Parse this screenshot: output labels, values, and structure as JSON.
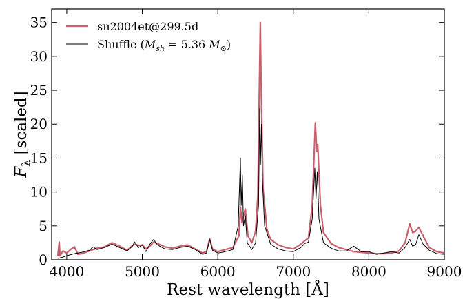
{
  "chart_data": {
    "type": "line",
    "title": "",
    "xlabel": "Rest wavelength [Å]",
    "ylabel_main": "F",
    "ylabel_sub": "λ",
    "ylabel_rest": " [scaled]",
    "xlim": [
      3800,
      9000
    ],
    "ylim": [
      0,
      37
    ],
    "grid": false,
    "legend_position": "top-left",
    "x_ticks": [
      4000,
      5000,
      6000,
      7000,
      8000,
      9000
    ],
    "x_tick_labels": [
      "4000",
      "5000",
      "6000",
      "7000",
      "8000",
      "9000"
    ],
    "y_ticks": [
      0,
      5,
      10,
      15,
      20,
      25,
      30,
      35
    ],
    "y_tick_labels": [
      "0",
      "5",
      "10",
      "15",
      "20",
      "25",
      "30",
      "35"
    ],
    "series": [
      {
        "name": "sn2004et@299.5d",
        "color": "#c8606e",
        "width": 2.2,
        "points": [
          [
            3880,
            0.5
          ],
          [
            3900,
            2.6
          ],
          [
            3910,
            0.6
          ],
          [
            3950,
            1.3
          ],
          [
            4000,
            1.0
          ],
          [
            4050,
            1.5
          ],
          [
            4100,
            1.9
          ],
          [
            4150,
            0.8
          ],
          [
            4200,
            0.9
          ],
          [
            4300,
            1.3
          ],
          [
            4400,
            1.7
          ],
          [
            4500,
            1.9
          ],
          [
            4600,
            2.5
          ],
          [
            4700,
            2.0
          ],
          [
            4800,
            1.4
          ],
          [
            4860,
            2.0
          ],
          [
            4900,
            2.3
          ],
          [
            4950,
            2.1
          ],
          [
            5000,
            2.2
          ],
          [
            5050,
            1.6
          ],
          [
            5100,
            2.0
          ],
          [
            5150,
            2.6
          ],
          [
            5200,
            2.4
          ],
          [
            5300,
            1.9
          ],
          [
            5400,
            1.7
          ],
          [
            5500,
            2.0
          ],
          [
            5600,
            2.2
          ],
          [
            5700,
            1.6
          ],
          [
            5800,
            1.0
          ],
          [
            5850,
            1.2
          ],
          [
            5893,
            3.1
          ],
          [
            5930,
            1.6
          ],
          [
            6000,
            1.2
          ],
          [
            6100,
            1.5
          ],
          [
            6200,
            1.8
          ],
          [
            6280,
            3.5
          ],
          [
            6300,
            7.8
          ],
          [
            6320,
            5.5
          ],
          [
            6364,
            7.5
          ],
          [
            6400,
            3.5
          ],
          [
            6450,
            2.5
          ],
          [
            6500,
            4.2
          ],
          [
            6530,
            9.5
          ],
          [
            6550,
            25.0
          ],
          [
            6563,
            35.0
          ],
          [
            6575,
            25.0
          ],
          [
            6600,
            10.5
          ],
          [
            6650,
            4.5
          ],
          [
            6700,
            3.0
          ],
          [
            6800,
            2.2
          ],
          [
            6900,
            1.8
          ],
          [
            7000,
            1.6
          ],
          [
            7100,
            2.3
          ],
          [
            7150,
            2.8
          ],
          [
            7200,
            3.2
          ],
          [
            7250,
            8.0
          ],
          [
            7291,
            20.2
          ],
          [
            7310,
            16.0
          ],
          [
            7323,
            17.0
          ],
          [
            7360,
            8.0
          ],
          [
            7400,
            4.0
          ],
          [
            7500,
            2.4
          ],
          [
            7600,
            1.8
          ],
          [
            7700,
            1.5
          ],
          [
            7800,
            1.2
          ],
          [
            7900,
            1.1
          ],
          [
            8000,
            1.0
          ],
          [
            8100,
            0.9
          ],
          [
            8200,
            0.9
          ],
          [
            8300,
            1.0
          ],
          [
            8400,
            1.3
          ],
          [
            8480,
            2.5
          ],
          [
            8542,
            5.3
          ],
          [
            8580,
            4.0
          ],
          [
            8620,
            4.2
          ],
          [
            8662,
            4.8
          ],
          [
            8720,
            3.5
          ],
          [
            8800,
            1.8
          ],
          [
            8900,
            1.2
          ],
          [
            9000,
            1.0
          ]
        ]
      },
      {
        "name": "Shuffle (M_sh = 5.36 M_⊙)",
        "color": "#000000",
        "width": 1.0,
        "points": [
          [
            3880,
            0.2
          ],
          [
            3950,
            0.4
          ],
          [
            4000,
            0.6
          ],
          [
            4100,
            0.9
          ],
          [
            4200,
            1.1
          ],
          [
            4300,
            1.4
          ],
          [
            4350,
            1.9
          ],
          [
            4400,
            1.5
          ],
          [
            4500,
            1.8
          ],
          [
            4600,
            2.3
          ],
          [
            4700,
            1.8
          ],
          [
            4800,
            1.3
          ],
          [
            4860,
            1.9
          ],
          [
            4900,
            2.6
          ],
          [
            4950,
            1.8
          ],
          [
            5000,
            2.2
          ],
          [
            5050,
            1.2
          ],
          [
            5100,
            2.3
          ],
          [
            5150,
            3.0
          ],
          [
            5200,
            2.2
          ],
          [
            5300,
            1.6
          ],
          [
            5400,
            1.5
          ],
          [
            5500,
            1.8
          ],
          [
            5600,
            2.0
          ],
          [
            5700,
            1.5
          ],
          [
            5800,
            0.8
          ],
          [
            5850,
            1.0
          ],
          [
            5893,
            3.0
          ],
          [
            5930,
            1.4
          ],
          [
            6000,
            1.0
          ],
          [
            6100,
            1.2
          ],
          [
            6200,
            1.5
          ],
          [
            6270,
            5.0
          ],
          [
            6300,
            15.0
          ],
          [
            6310,
            8.0
          ],
          [
            6325,
            12.5
          ],
          [
            6340,
            5.0
          ],
          [
            6364,
            6.5
          ],
          [
            6390,
            2.5
          ],
          [
            6450,
            1.5
          ],
          [
            6500,
            2.5
          ],
          [
            6540,
            8.0
          ],
          [
            6555,
            22.3
          ],
          [
            6565,
            14.0
          ],
          [
            6578,
            20.0
          ],
          [
            6590,
            12.0
          ],
          [
            6620,
            5.0
          ],
          [
            6700,
            2.3
          ],
          [
            6800,
            1.6
          ],
          [
            6900,
            1.3
          ],
          [
            7000,
            1.2
          ],
          [
            7100,
            1.8
          ],
          [
            7150,
            2.4
          ],
          [
            7200,
            2.6
          ],
          [
            7250,
            6.0
          ],
          [
            7285,
            13.5
          ],
          [
            7300,
            9.0
          ],
          [
            7318,
            13.0
          ],
          [
            7340,
            6.0
          ],
          [
            7400,
            2.5
          ],
          [
            7500,
            1.7
          ],
          [
            7600,
            1.3
          ],
          [
            7700,
            1.3
          ],
          [
            7800,
            2.0
          ],
          [
            7850,
            1.6
          ],
          [
            7900,
            1.2
          ],
          [
            8000,
            1.2
          ],
          [
            8100,
            0.8
          ],
          [
            8200,
            1.0
          ],
          [
            8300,
            1.2
          ],
          [
            8400,
            1.0
          ],
          [
            8480,
            1.8
          ],
          [
            8542,
            3.0
          ],
          [
            8580,
            2.0
          ],
          [
            8620,
            2.2
          ],
          [
            8662,
            3.7
          ],
          [
            8720,
            2.3
          ],
          [
            8800,
            1.4
          ],
          [
            8900,
            0.9
          ],
          [
            9000,
            0.8
          ]
        ]
      }
    ]
  },
  "legend": {
    "label_observed": "sn2004et@299.5d",
    "label_model_prefix": "Shuffle (",
    "label_model_M": "M",
    "label_model_sh": "sh",
    "label_model_eq": " = 5.36 ",
    "label_model_Msun": "M",
    "label_model_sun": "⊙",
    "label_model_suffix": ")"
  }
}
